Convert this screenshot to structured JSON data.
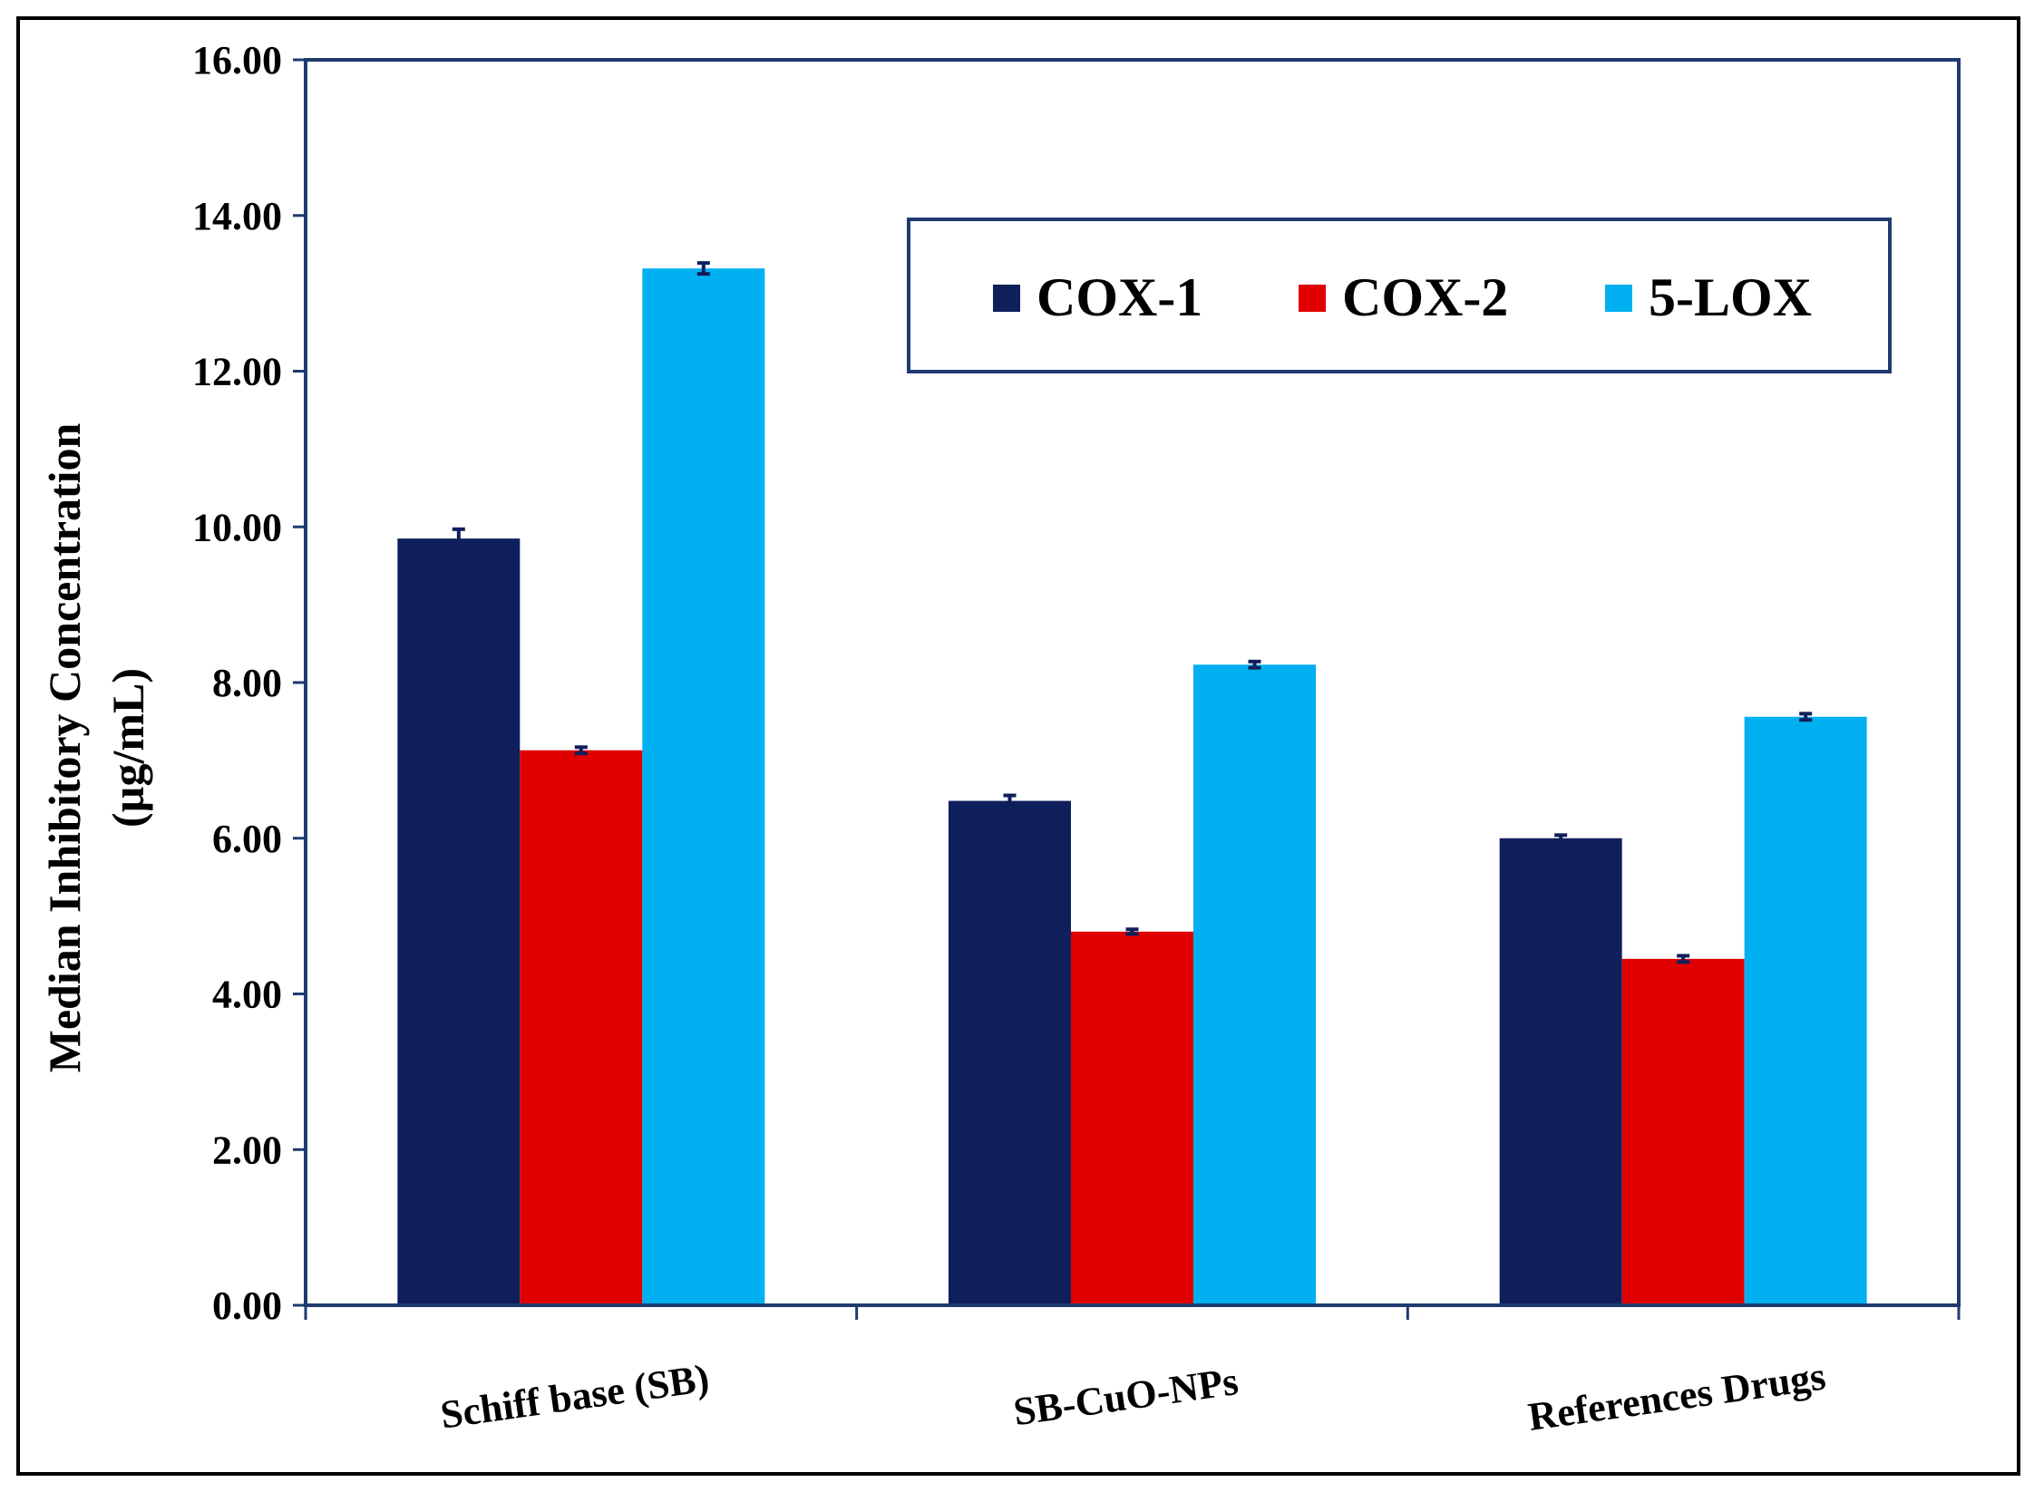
{
  "chart_data": {
    "type": "bar",
    "categories": [
      "Schiff base (SB)",
      "SB-CuO-NPs",
      "References Drugs"
    ],
    "series": [
      {
        "name": "COX-1",
        "color": "#0f1f5c",
        "values": [
          9.85,
          6.48,
          6.0
        ],
        "errors": [
          0.12,
          0.07,
          0.04
        ]
      },
      {
        "name": "COX-2",
        "color": "#e00000",
        "values": [
          7.13,
          4.8,
          4.45
        ],
        "errors": [
          0.04,
          0.03,
          0.04
        ]
      },
      {
        "name": "5-LOX",
        "color": "#00b0f0",
        "values": [
          13.32,
          8.23,
          7.56
        ],
        "errors": [
          0.07,
          0.04,
          0.04
        ]
      }
    ],
    "yticks": [
      "0.00",
      "2.00",
      "4.00",
      "6.00",
      "8.00",
      "10.00",
      "12.00",
      "14.00",
      "16.00"
    ],
    "ylim": [
      0,
      16
    ],
    "ylabel_line1": "Median Inhibitory Concentration",
    "ylabel_line2": "(µg/mL)",
    "xlabel": "",
    "title": "",
    "legend_position": "top-right",
    "axis_color": "#1f3a6e",
    "errorbar_color": "#0f1f5c"
  }
}
